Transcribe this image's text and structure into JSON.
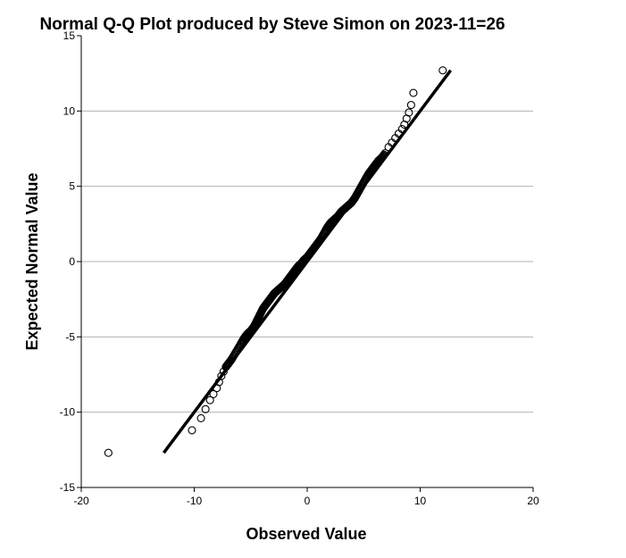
{
  "chart_data": {
    "type": "scatter",
    "title": "Normal Q-Q Plot produced by Steve Simon on 2023-11=26",
    "xlabel": "Observed Value",
    "ylabel": "Expected Normal Value",
    "xlim": [
      -20,
      20
    ],
    "ylim": [
      -15,
      15
    ],
    "xticks": [
      -20,
      -10,
      0,
      10,
      20
    ],
    "yticks": [
      -15,
      -10,
      -5,
      0,
      5,
      10,
      15
    ],
    "grid": "horizontal",
    "colors": {
      "points": "#000000",
      "reference_line": "#000000",
      "grid": "#b3b3b3"
    },
    "reference_line": {
      "x": [
        -12.7,
        12.7
      ],
      "y": [
        -12.7,
        12.7
      ]
    },
    "sampled_points_note_free": true,
    "points": {
      "x": [
        -17.6,
        -10.2,
        -9.4,
        -9.0,
        -8.6,
        -8.3,
        -8.0,
        -7.8,
        -7.6,
        -7.4,
        -7.2,
        -7.0,
        -6.7,
        -6.3,
        -5.9,
        -5.6,
        -5.3,
        -5.0,
        -4.7,
        -4.5,
        -4.3,
        -4.1,
        -3.9,
        -3.7,
        -3.5,
        -3.3,
        -3.1,
        -2.9,
        -2.6,
        -2.3,
        -2.0,
        -1.7,
        -1.4,
        -1.1,
        -0.8,
        -0.5,
        -0.3,
        0.0,
        0.3,
        0.6,
        0.9,
        1.2,
        1.5,
        1.8,
        2.1,
        2.4,
        2.7,
        3.0,
        3.3,
        3.6,
        3.9,
        4.2,
        4.5,
        4.8,
        5.1,
        5.4,
        5.7,
        6.0,
        6.3,
        6.6,
        6.9,
        7.2,
        7.5,
        7.8,
        8.1,
        8.4,
        8.6,
        8.8,
        9.0,
        9.2,
        9.4,
        12.0
      ],
      "y": [
        -12.7,
        -11.2,
        -10.4,
        -9.8,
        -9.2,
        -8.8,
        -8.4,
        -8.0,
        -7.6,
        -7.3,
        -7.0,
        -6.8,
        -6.5,
        -6.0,
        -5.5,
        -5.1,
        -4.8,
        -4.6,
        -4.3,
        -4.0,
        -3.7,
        -3.4,
        -3.1,
        -2.9,
        -2.7,
        -2.5,
        -2.3,
        -2.1,
        -1.9,
        -1.7,
        -1.5,
        -1.2,
        -0.9,
        -0.6,
        -0.3,
        -0.1,
        0.1,
        0.3,
        0.6,
        0.9,
        1.2,
        1.5,
        1.9,
        2.3,
        2.6,
        2.8,
        3.0,
        3.3,
        3.5,
        3.7,
        3.9,
        4.2,
        4.6,
        5.0,
        5.4,
        5.8,
        6.1,
        6.4,
        6.7,
        6.9,
        7.2,
        7.6,
        7.9,
        8.2,
        8.5,
        8.8,
        9.1,
        9.5,
        9.9,
        10.4,
        11.2,
        12.7
      ]
    }
  }
}
